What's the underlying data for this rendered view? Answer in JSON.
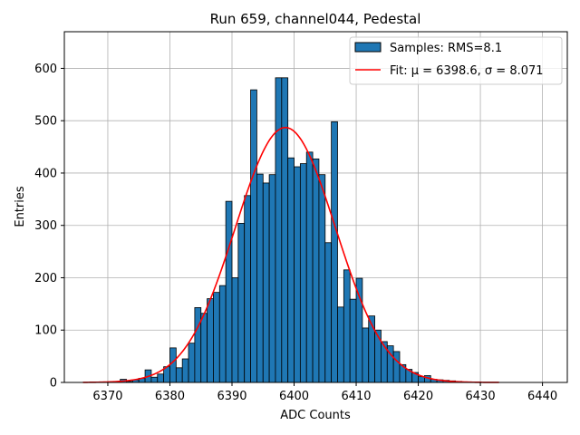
{
  "chart_data": {
    "type": "bar",
    "title": "Run 659, channel044, Pedestal",
    "xlabel": "ADC Counts",
    "ylabel": "Entries",
    "xlim": [
      6363,
      6444
    ],
    "ylim": [
      0,
      670
    ],
    "xticks": [
      6370,
      6380,
      6390,
      6400,
      6410,
      6420,
      6430,
      6440
    ],
    "yticks": [
      0,
      100,
      200,
      300,
      400,
      500,
      600
    ],
    "grid": true,
    "legend_position": "top-right",
    "histogram": {
      "name": "Samples: RMS=8.1",
      "color": "#1f77b4",
      "edge_color": "#000000",
      "bin_start": 6366,
      "bin_width": 1,
      "counts": [
        0,
        0,
        0,
        0,
        0,
        0,
        6,
        2,
        5,
        8,
        24,
        10,
        16,
        30,
        66,
        28,
        45,
        75,
        143,
        132,
        160,
        172,
        185,
        346,
        200,
        304,
        357,
        559,
        398,
        381,
        397,
        582,
        582,
        429,
        412,
        418,
        440,
        427,
        397,
        267,
        498,
        144,
        215,
        159,
        199,
        104,
        127,
        100,
        78,
        70,
        59,
        34,
        25,
        19,
        11,
        13,
        6,
        5,
        4,
        3,
        2,
        1,
        1,
        1,
        0,
        0,
        0
      ]
    },
    "fit": {
      "name": "Fit: μ = 6398.6, σ = 8.071",
      "color": "#ff0000",
      "mu": 6398.6,
      "sigma": 8.071,
      "amplitude": 487,
      "x_range": [
        6366,
        6433
      ]
    }
  }
}
